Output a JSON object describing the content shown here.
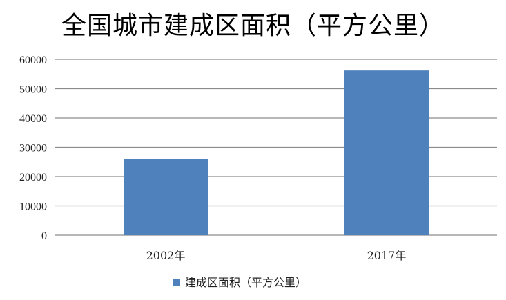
{
  "chart_data": {
    "type": "bar",
    "title": "全国城市建成区面积（平方公里）",
    "categories": [
      "2002年",
      "2017年"
    ],
    "series": [
      {
        "name": "建成区面积（平方公里）",
        "values": [
          26000,
          56200
        ]
      }
    ],
    "ylim": [
      0,
      60000
    ],
    "yticks": [
      0,
      10000,
      20000,
      30000,
      40000,
      50000,
      60000
    ],
    "grid": true,
    "legend": "bottom",
    "bar_color": "#4F81BD"
  }
}
